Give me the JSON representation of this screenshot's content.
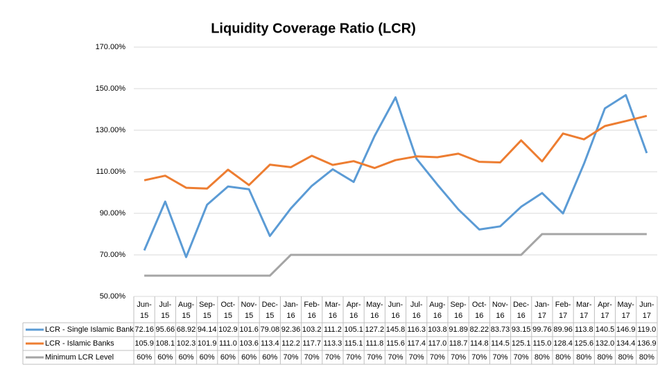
{
  "chart_data": {
    "type": "line",
    "title": "Liquidity Coverage Ratio (LCR)",
    "categories": [
      "Jun-15",
      "Jul-15",
      "Aug-15",
      "Sep-15",
      "Oct-15",
      "Nov-15",
      "Dec-15",
      "Jan-16",
      "Feb-16",
      "Mar-16",
      "Apr-16",
      "May-16",
      "Jun-16",
      "Jul-16",
      "Aug-16",
      "Sep-16",
      "Oct-16",
      "Nov-16",
      "Dec-16",
      "Jan-17",
      "Feb-17",
      "Mar-17",
      "Apr-17",
      "May-17",
      "Jun-17"
    ],
    "series": [
      {
        "name": "LCR - Single Islamic Bank",
        "color": "#5b9bd5",
        "values": [
          72.16,
          95.66,
          68.92,
          94.14,
          102.9,
          101.6,
          79.08,
          92.36,
          103.2,
          111.2,
          105.1,
          127.2,
          145.8,
          116.3,
          103.8,
          91.89,
          82.22,
          83.73,
          93.15,
          99.76,
          89.96,
          113.8,
          140.5,
          146.9,
          119.0
        ],
        "value_labels": [
          "72.16",
          "95.66",
          "68.92",
          "94.14",
          "102.9",
          "101.6",
          "79.08",
          "92.36",
          "103.2",
          "111.2",
          "105.1",
          "127.2",
          "145.8",
          "116.3",
          "103.8",
          "91.89",
          "82.22",
          "83.73",
          "93.15",
          "99.76",
          "89.96",
          "113.8",
          "140.5",
          "146.9",
          "119.0"
        ]
      },
      {
        "name": "LCR - Islamic Banks",
        "color": "#ed7d31",
        "values": [
          105.9,
          108.1,
          102.3,
          101.9,
          111.0,
          103.6,
          113.4,
          112.2,
          117.7,
          113.3,
          115.1,
          111.8,
          115.6,
          117.4,
          117.0,
          118.7,
          114.8,
          114.5,
          125.1,
          115.0,
          128.4,
          125.6,
          132.0,
          134.4,
          136.9
        ],
        "value_labels": [
          "105.9",
          "108.1",
          "102.3",
          "101.9",
          "111.0",
          "103.6",
          "113.4",
          "112.2",
          "117.7",
          "113.3",
          "115.1",
          "111.8",
          "115.6",
          "117.4",
          "117.0",
          "118.7",
          "114.8",
          "114.5",
          "125.1",
          "115.0",
          "128.4",
          "125.6",
          "132.0",
          "134.4",
          "136.9"
        ]
      },
      {
        "name": "Minimum LCR Level",
        "color": "#a5a5a5",
        "values": [
          60,
          60,
          60,
          60,
          60,
          60,
          60,
          70,
          70,
          70,
          70,
          70,
          70,
          70,
          70,
          70,
          70,
          70,
          70,
          80,
          80,
          80,
          80,
          80,
          80
        ],
        "value_labels": [
          "60%",
          "60%",
          "60%",
          "60%",
          "60%",
          "60%",
          "60%",
          "70%",
          "70%",
          "70%",
          "70%",
          "70%",
          "70%",
          "70%",
          "70%",
          "70%",
          "70%",
          "70%",
          "70%",
          "80%",
          "80%",
          "80%",
          "80%",
          "80%",
          "80%"
        ]
      }
    ],
    "ylim": [
      50,
      170
    ],
    "yticks": [
      {
        "value": 50,
        "label": "50.00%"
      },
      {
        "value": 70,
        "label": "70.00%"
      },
      {
        "value": 90,
        "label": "90.00%"
      },
      {
        "value": 110,
        "label": "110.00%"
      },
      {
        "value": 130,
        "label": "130.00%"
      },
      {
        "value": 150,
        "label": "150.00%"
      },
      {
        "value": 170,
        "label": "170.00%"
      }
    ],
    "grid": true
  }
}
